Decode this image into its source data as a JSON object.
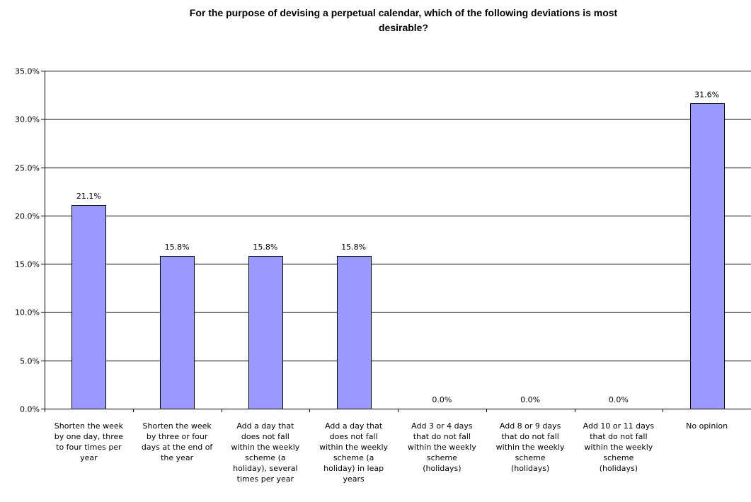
{
  "chart_data": {
    "type": "bar",
    "title_lines": [
      "For the purpose of devising a perpetual calendar, which of the following deviations is most",
      "desirable?"
    ],
    "xlabel": "",
    "ylabel": "",
    "ylim": [
      0,
      35
    ],
    "y_ticks": [
      "0.0%",
      "5.0%",
      "10.0%",
      "15.0%",
      "20.0%",
      "25.0%",
      "30.0%",
      "35.0%"
    ],
    "grid": true,
    "legend": "none",
    "categories": [
      [
        "Shorten the week",
        "by one day, three",
        "to four times per",
        "year"
      ],
      [
        "Shorten the week",
        "by three or four",
        "days at the end of",
        "the year"
      ],
      [
        "Add a day that",
        "does not fall",
        "within the weekly",
        "scheme (a",
        "holiday), several",
        "times per year"
      ],
      [
        "Add a day that",
        "does not fall",
        "within the weekly",
        "scheme (a",
        "holiday) in leap",
        "years"
      ],
      [
        "Add 3 or 4 days",
        "that do not fall",
        "within the weekly",
        "scheme",
        "(holidays)"
      ],
      [
        "Add 8 or 9 days",
        "that do not fall",
        "within the weekly",
        "scheme",
        "(holidays)"
      ],
      [
        "Add 10 or 11 days",
        "that do not fall",
        "within the weekly",
        "scheme",
        "(holidays)"
      ],
      [
        "No opinion"
      ]
    ],
    "values": [
      21.1,
      15.8,
      15.8,
      15.8,
      0.0,
      0.0,
      0.0,
      31.6
    ],
    "data_labels": [
      "21.1%",
      "15.8%",
      "15.8%",
      "15.8%",
      "0.0%",
      "0.0%",
      "0.0%",
      "31.6%"
    ],
    "colors": {
      "bar_fill": "#9999ff",
      "bar_stroke": "#000000",
      "grid": "#000000"
    }
  }
}
